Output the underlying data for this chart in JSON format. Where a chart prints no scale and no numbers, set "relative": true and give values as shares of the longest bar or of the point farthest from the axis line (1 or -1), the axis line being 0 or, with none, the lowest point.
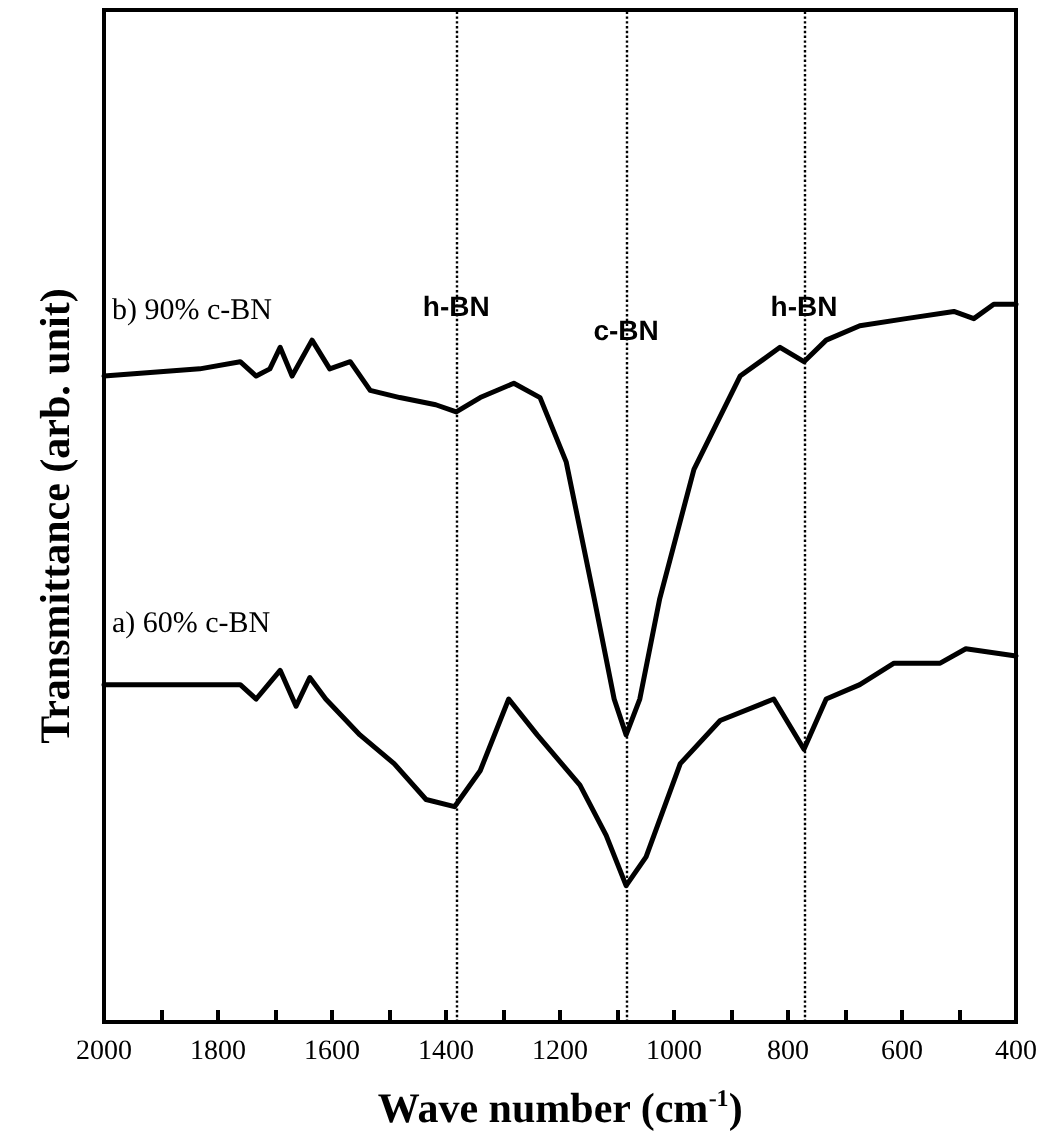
{
  "chart_data": {
    "type": "line",
    "relative": true,
    "xlabel": "Wave number (cm$^{-1}$)",
    "ylabel": "Transmittance (arb. unit)",
    "xlim": [
      2000,
      400
    ],
    "xticks": [
      2000,
      {
        "value": 1900,
        "label": null
      },
      1800,
      {
        "value": 1700,
        "label": null
      },
      1600,
      {
        "value": 1500,
        "label": null
      },
      1400,
      {
        "value": 1300,
        "label": null
      },
      1200,
      {
        "value": 1100,
        "label": null
      },
      1000,
      {
        "value": 900,
        "label": null
      },
      800,
      {
        "value": 700,
        "label": null
      },
      600,
      {
        "value": 500,
        "label": null
      },
      400
    ],
    "tick_labels": "x",
    "grid": false,
    "legend": false,
    "line_style": "solid",
    "series": [
      {
        "name": "b) 90% c-BN",
        "color": "#000000",
        "x": [
          2000,
          1832,
          1761,
          1733,
          1709,
          1691,
          1670,
          1635,
          1604,
          1568,
          1533,
          1481,
          1418,
          1382,
          1340,
          1281,
          1235,
          1189,
          1140,
          1105,
          1084,
          1060,
          1025,
          965,
          884,
          814,
          772,
          733,
          674,
          593,
          509,
          474,
          439,
          400
        ],
        "values": [
          0.9,
          0.91,
          0.92,
          0.9,
          0.91,
          0.94,
          0.9,
          0.95,
          0.91,
          0.92,
          0.88,
          0.87,
          0.86,
          0.85,
          0.87,
          0.89,
          0.87,
          0.78,
          0.59,
          0.45,
          0.4,
          0.45,
          0.59,
          0.77,
          0.9,
          0.94,
          0.92,
          0.95,
          0.97,
          0.98,
          0.99,
          0.98,
          1.0,
          1.0
        ]
      },
      {
        "name": "a) 60% c-BN",
        "color": "#000000",
        "x": [
          2000,
          1807,
          1761,
          1733,
          1691,
          1663,
          1639,
          1611,
          1551,
          1491,
          1435,
          1385,
          1340,
          1290,
          1240,
          1165,
          1119,
          1084,
          1049,
          989,
          919,
          825,
          772,
          733,
          674,
          614,
          579,
          533,
          488,
          400
        ],
        "values": [
          0.47,
          0.47,
          0.47,
          0.45,
          0.49,
          0.44,
          0.48,
          0.45,
          0.4,
          0.36,
          0.31,
          0.3,
          0.35,
          0.45,
          0.4,
          0.33,
          0.26,
          0.19,
          0.23,
          0.36,
          0.42,
          0.45,
          0.38,
          0.45,
          0.47,
          0.5,
          0.5,
          0.5,
          0.52,
          0.51
        ]
      }
    ],
    "ref_lines": [
      {
        "axis": "x",
        "value": 1382,
        "label": "h-BN",
        "line_style": "dotted",
        "color": "#000000"
      },
      {
        "axis": "x",
        "value": 1084,
        "label": "c-BN",
        "line_style": "dotted",
        "color": "#000000"
      },
      {
        "axis": "x",
        "value": 772,
        "label": "h-BN",
        "line_style": "dotted",
        "color": "#000000"
      }
    ]
  }
}
